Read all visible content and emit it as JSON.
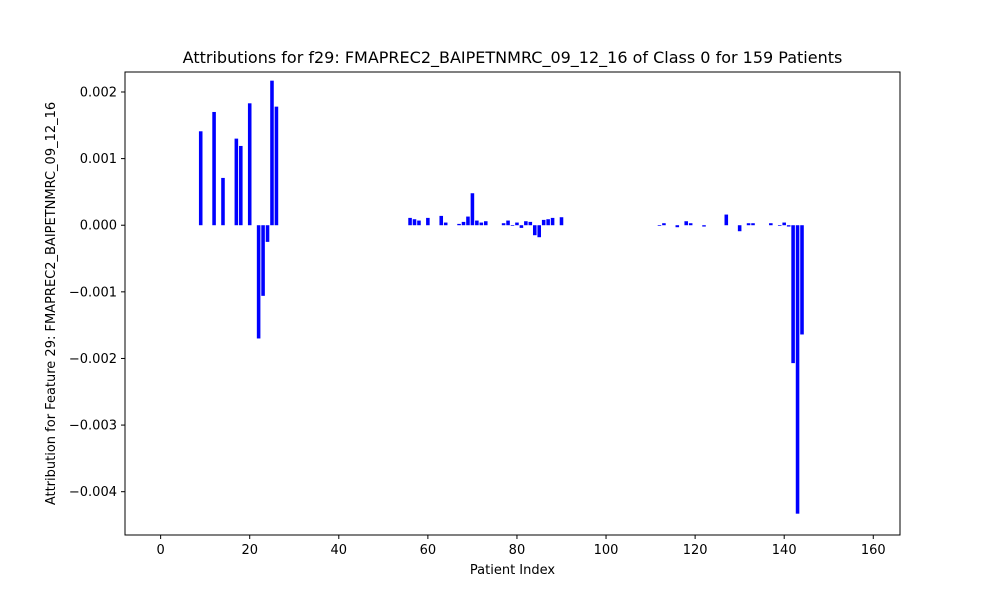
{
  "chart_data": {
    "type": "bar",
    "title": "Attributions for f29: FMAPREC2_BAIPETNMRC_09_12_16 of Class 0 for 159 Patients",
    "xlabel": "Patient Index",
    "ylabel": "Attribution for Feature 29: FMAPREC2_BAIPETNMRC_09_12_16",
    "xlim": [
      -8,
      166
    ],
    "ylim": [
      -0.00465,
      0.0023
    ],
    "xticks": [
      0,
      20,
      40,
      60,
      80,
      100,
      120,
      140,
      160
    ],
    "xtick_labels": [
      "0",
      "20",
      "40",
      "60",
      "80",
      "100",
      "120",
      "140",
      "160"
    ],
    "yticks": [
      0.002,
      0.001,
      0.0,
      -0.001,
      -0.002,
      -0.003,
      -0.004
    ],
    "ytick_labels": [
      "0.002",
      "0.001",
      "0.000",
      "−0.001",
      "−0.002",
      "−0.003",
      "−0.004"
    ],
    "bar_color": "#0000ff",
    "grid": false,
    "points": [
      {
        "x": 9,
        "y": 0.00141
      },
      {
        "x": 12,
        "y": 0.0017
      },
      {
        "x": 14,
        "y": 0.00071
      },
      {
        "x": 17,
        "y": 0.0013
      },
      {
        "x": 18,
        "y": 0.00119
      },
      {
        "x": 20,
        "y": 0.00183
      },
      {
        "x": 22,
        "y": -0.0017
      },
      {
        "x": 23,
        "y": -0.00106
      },
      {
        "x": 24,
        "y": -0.00025
      },
      {
        "x": 25,
        "y": 0.00217
      },
      {
        "x": 26,
        "y": 0.00178
      },
      {
        "x": 56,
        "y": 0.00011
      },
      {
        "x": 57,
        "y": 9e-05
      },
      {
        "x": 58,
        "y": 7e-05
      },
      {
        "x": 60,
        "y": 0.00011
      },
      {
        "x": 63,
        "y": 0.00014
      },
      {
        "x": 64,
        "y": 4e-05
      },
      {
        "x": 67,
        "y": 2e-05
      },
      {
        "x": 68,
        "y": 5e-05
      },
      {
        "x": 69,
        "y": 0.00013
      },
      {
        "x": 70,
        "y": 0.00048
      },
      {
        "x": 71,
        "y": 7e-05
      },
      {
        "x": 72,
        "y": 4e-05
      },
      {
        "x": 73,
        "y": 6e-05
      },
      {
        "x": 77,
        "y": 3e-05
      },
      {
        "x": 78,
        "y": 7e-05
      },
      {
        "x": 79,
        "y": -1e-05
      },
      {
        "x": 80,
        "y": 4e-05
      },
      {
        "x": 81,
        "y": -4e-05
      },
      {
        "x": 82,
        "y": 6e-05
      },
      {
        "x": 83,
        "y": 5e-05
      },
      {
        "x": 84,
        "y": -0.00015
      },
      {
        "x": 85,
        "y": -0.00018
      },
      {
        "x": 86,
        "y": 8e-05
      },
      {
        "x": 87,
        "y": 9e-05
      },
      {
        "x": 88,
        "y": 0.00011
      },
      {
        "x": 90,
        "y": 0.00012
      },
      {
        "x": 112,
        "y": -1e-05
      },
      {
        "x": 113,
        "y": 3e-05
      },
      {
        "x": 116,
        "y": -3e-05
      },
      {
        "x": 118,
        "y": 6e-05
      },
      {
        "x": 119,
        "y": 3e-05
      },
      {
        "x": 122,
        "y": -2e-05
      },
      {
        "x": 127,
        "y": 0.00016
      },
      {
        "x": 130,
        "y": -9e-05
      },
      {
        "x": 132,
        "y": 3e-05
      },
      {
        "x": 133,
        "y": 3e-05
      },
      {
        "x": 137,
        "y": 3e-05
      },
      {
        "x": 139,
        "y": -1e-05
      },
      {
        "x": 140,
        "y": 4e-05
      },
      {
        "x": 141,
        "y": -2e-05
      },
      {
        "x": 142,
        "y": -0.00207
      },
      {
        "x": 143,
        "y": -0.00433
      },
      {
        "x": 144,
        "y": -0.00164
      }
    ]
  }
}
